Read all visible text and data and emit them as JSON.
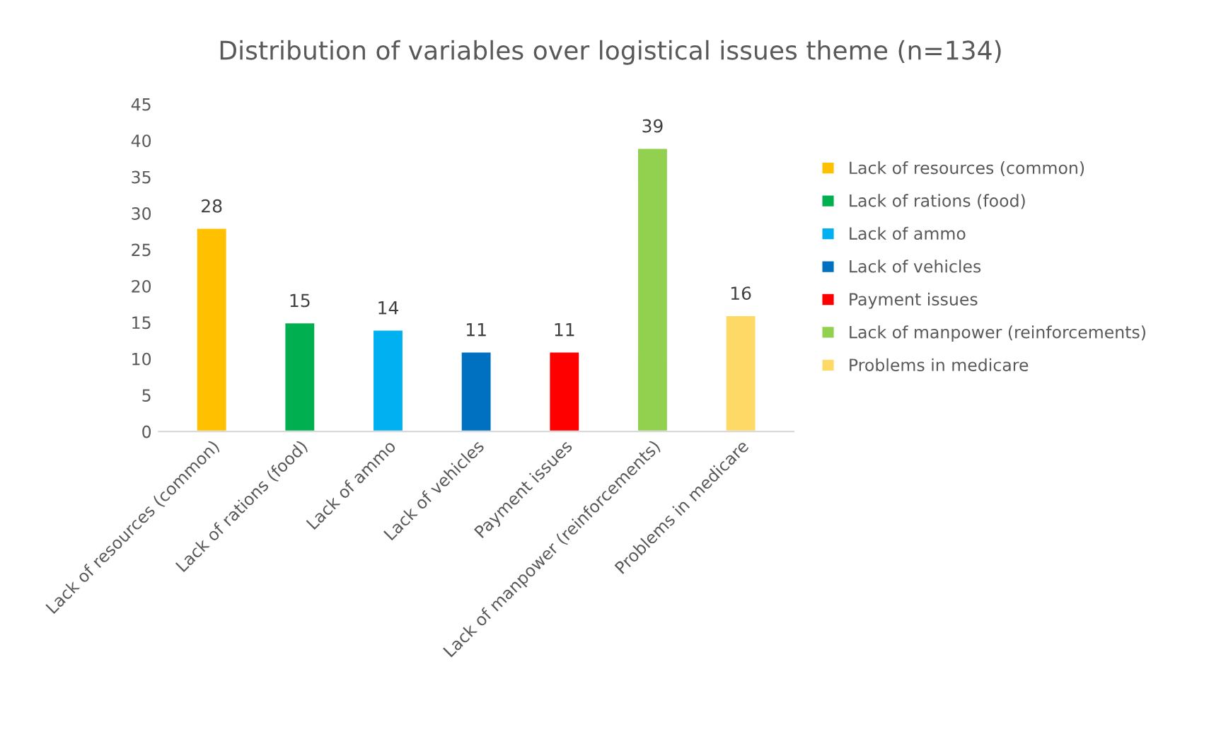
{
  "chart_data": {
    "type": "bar",
    "title": "Distribution of variables over logistical issues theme (n=134)",
    "categories": [
      "Lack of resources (common)",
      "Lack of rations (food)",
      "Lack of ammo",
      "Lack of vehicles",
      "Payment issues",
      "Lack of manpower (reinforcements)",
      "Problems in medicare"
    ],
    "series": [
      {
        "name": "Lack of resources (common)",
        "color": "#ffc000",
        "values": [
          28,
          null,
          null,
          null,
          null,
          null,
          null
        ]
      },
      {
        "name": "Lack of rations (food)",
        "color": "#00b050",
        "values": [
          null,
          15,
          null,
          null,
          null,
          null,
          null
        ]
      },
      {
        "name": "Lack of ammo",
        "color": "#00b0f0",
        "values": [
          null,
          null,
          14,
          null,
          null,
          null,
          null
        ]
      },
      {
        "name": "Lack of vehicles",
        "color": "#0070c0",
        "values": [
          null,
          null,
          null,
          11,
          null,
          null,
          null
        ]
      },
      {
        "name": "Payment issues",
        "color": "#ff0000",
        "values": [
          null,
          null,
          null,
          null,
          11,
          null,
          null
        ]
      },
      {
        "name": "Lack of manpower (reinforcements)",
        "color": "#92d050",
        "values": [
          null,
          null,
          null,
          null,
          null,
          39,
          null
        ]
      },
      {
        "name": "Problems in medicare",
        "color": "#ffd966",
        "values": [
          null,
          null,
          null,
          null,
          null,
          null,
          16
        ]
      }
    ],
    "ylim": [
      0,
      45
    ],
    "yticks": [
      0,
      5,
      10,
      15,
      20,
      25,
      30,
      35,
      40,
      45
    ],
    "grid": false,
    "legend": "right",
    "data_labels": true
  }
}
